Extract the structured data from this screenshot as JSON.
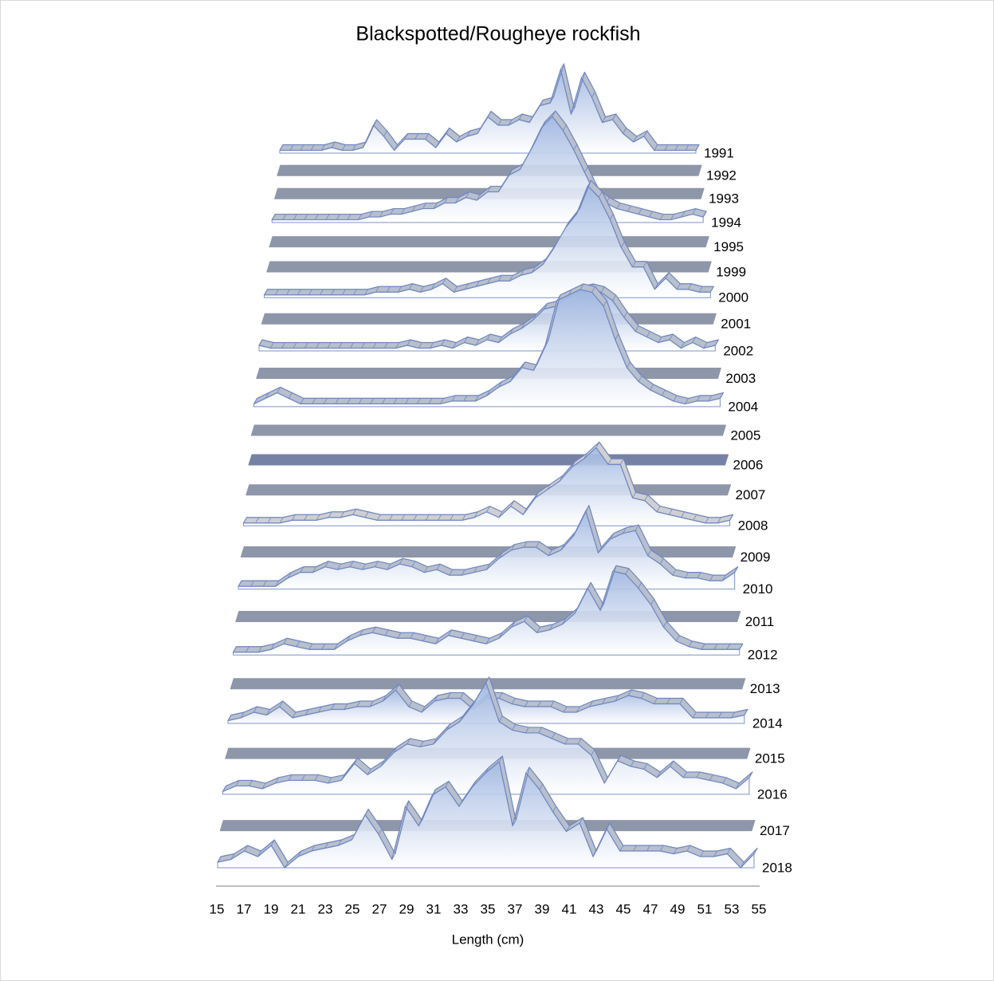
{
  "chart_data": {
    "type": "ridgeline",
    "title": "Blackspotted/Rougheye rockfish",
    "xlabel": "Length (cm)",
    "xlim": [
      15,
      55
    ],
    "xticks": [
      15,
      17,
      19,
      21,
      23,
      25,
      27,
      29,
      31,
      33,
      35,
      37,
      39,
      41,
      43,
      45,
      47,
      49,
      51,
      53,
      55
    ],
    "x": [
      15,
      16,
      17,
      18,
      19,
      20,
      21,
      22,
      23,
      24,
      25,
      26,
      27,
      28,
      29,
      30,
      31,
      32,
      33,
      34,
      35,
      36,
      37,
      38,
      39,
      40,
      41,
      42,
      43,
      44,
      45,
      46,
      47,
      48,
      49,
      50,
      51,
      52,
      53,
      54,
      55
    ],
    "series": [
      {
        "name": "1991",
        "color": "#b8bfcd",
        "values": [
          0.5,
          0.5,
          0.5,
          0.5,
          0.5,
          1,
          0.5,
          0.5,
          1,
          5,
          3,
          0.5,
          2.5,
          2.5,
          2.5,
          1,
          3.5,
          2,
          3,
          3.5,
          6.5,
          5,
          5,
          6,
          5.5,
          8.5,
          9,
          15,
          7,
          13.5,
          10,
          5.5,
          6,
          3.5,
          2,
          3,
          0.5,
          0.5,
          0.5,
          0.5,
          0.5
        ]
      },
      {
        "name": "1992",
        "color": "#8e96aa",
        "values": [
          0,
          0,
          0,
          0,
          0,
          0,
          0,
          0,
          0,
          0,
          0,
          0,
          0,
          0,
          0,
          0,
          0,
          0,
          0,
          0,
          0,
          0,
          0,
          0,
          0,
          0,
          0,
          0,
          0,
          0,
          0,
          0,
          0,
          0,
          0,
          0,
          0,
          0,
          0,
          0,
          0
        ]
      },
      {
        "name": "1993",
        "color": "#8e96aa",
        "values": [
          0,
          0,
          0,
          0,
          0,
          0,
          0,
          0,
          0,
          0,
          0,
          0,
          0,
          0,
          0,
          0,
          0,
          0,
          0,
          0,
          0,
          0,
          0,
          0,
          0,
          0,
          0,
          0,
          0,
          0,
          0,
          0,
          0,
          0,
          0,
          0,
          0,
          0,
          0,
          0,
          0
        ]
      },
      {
        "name": "1994",
        "color": "#b8bfcd",
        "values": [
          0.5,
          0.5,
          0.5,
          0.5,
          0.5,
          0.5,
          0.5,
          0.5,
          0.5,
          1,
          1,
          1.5,
          1.5,
          2,
          2.5,
          2.5,
          3.5,
          3.5,
          4.5,
          4,
          5.5,
          5.5,
          8.5,
          9.5,
          13,
          17,
          19,
          16.5,
          13,
          9,
          5,
          3.5,
          2.5,
          2,
          1.5,
          1,
          0.5,
          0.5,
          1,
          1.5,
          1
        ]
      },
      {
        "name": "1995",
        "color": "#8e96aa",
        "values": [
          0,
          0,
          0,
          0,
          0,
          0,
          0,
          0,
          0,
          0,
          0,
          0,
          0,
          0,
          0,
          0,
          0,
          0,
          0,
          0,
          0,
          0,
          0,
          0,
          0,
          0,
          0,
          0,
          0,
          0,
          0,
          0,
          0,
          0,
          0,
          0,
          0,
          0,
          0,
          0,
          0
        ]
      },
      {
        "name": "1999",
        "color": "#8e96aa",
        "values": [
          0,
          0,
          0,
          0,
          0,
          0,
          0,
          0,
          0,
          0,
          0,
          0,
          0,
          0,
          0,
          0,
          0,
          0,
          0,
          0,
          0,
          0,
          0,
          0,
          0,
          0,
          0,
          0,
          0,
          0,
          0,
          0,
          0,
          0,
          0,
          0,
          0,
          0,
          0,
          0,
          0
        ]
      },
      {
        "name": "2000",
        "color": "#b8bfcd",
        "values": [
          0.5,
          0.5,
          0.5,
          0.5,
          0.5,
          0.5,
          0.5,
          0.5,
          0.5,
          0.5,
          1,
          1,
          1,
          1.5,
          1,
          1.5,
          2.5,
          1,
          1.5,
          2,
          2.5,
          3,
          3,
          4,
          4.5,
          6,
          9,
          12.5,
          15,
          20,
          18,
          14,
          9,
          5.5,
          5.5,
          1.5,
          3.5,
          1.5,
          1.5,
          1,
          1
        ]
      },
      {
        "name": "2001",
        "color": "#8e96aa",
        "values": [
          0,
          0,
          0,
          0,
          0,
          0,
          0,
          0,
          0,
          0,
          0,
          0,
          0,
          0,
          0,
          0,
          0,
          0,
          0,
          0,
          0,
          0,
          0,
          0,
          0,
          0,
          0,
          0,
          0,
          0,
          0,
          0,
          0,
          0,
          0,
          0,
          0,
          0,
          0,
          0,
          0
        ]
      },
      {
        "name": "2002",
        "color": "#b8bfcd",
        "values": [
          1,
          0.5,
          0.5,
          0.5,
          0.5,
          0.5,
          0.5,
          0.5,
          0.5,
          0.5,
          0.5,
          0.5,
          0.5,
          1,
          0.5,
          0.5,
          1,
          0.5,
          1.5,
          1,
          2,
          1.5,
          3,
          4,
          5.5,
          7.5,
          8,
          9.5,
          10.5,
          11,
          10.5,
          9,
          6,
          3.5,
          2.5,
          1.5,
          2,
          0.5,
          1.5,
          0.5,
          1
        ]
      },
      {
        "name": "2003",
        "color": "#8e96aa",
        "values": [
          0,
          0,
          0,
          0,
          0,
          0,
          0,
          0,
          0,
          0,
          0,
          0,
          0,
          0,
          0,
          0,
          0,
          0,
          0,
          0,
          0,
          0,
          0,
          0,
          0,
          0,
          0,
          0,
          0,
          0,
          0,
          0,
          0,
          0,
          0,
          0,
          0,
          0,
          0,
          0,
          0
        ]
      },
      {
        "name": "2004",
        "color": "#b8bfcd",
        "values": [
          0.5,
          1.5,
          2.5,
          1.5,
          0.5,
          0.5,
          0.5,
          0.5,
          0.5,
          0.5,
          0.5,
          0.5,
          0.5,
          0.5,
          0.5,
          0.5,
          0.5,
          1,
          1,
          1,
          2,
          3.5,
          4.5,
          7,
          6.5,
          11,
          19,
          20,
          21,
          20.5,
          18,
          12,
          7,
          4.5,
          3,
          2,
          1,
          0.5,
          1,
          1,
          1.5
        ]
      },
      {
        "name": "2005",
        "color": "#8e96aa",
        "values": [
          0,
          0,
          0,
          0,
          0,
          0,
          0,
          0,
          0,
          0,
          0,
          0,
          0,
          0,
          0,
          0,
          0,
          0,
          0,
          0,
          0,
          0,
          0,
          0,
          0,
          0,
          0,
          0,
          0,
          0,
          0,
          0,
          0,
          0,
          0,
          0,
          0,
          0,
          0,
          0,
          0
        ]
      },
      {
        "name": "2006",
        "color": "#7582a6",
        "values": [
          0,
          0,
          0,
          0,
          0,
          0,
          0,
          0,
          0,
          0,
          0,
          0,
          0,
          0,
          0,
          0,
          0,
          0,
          0,
          0,
          0,
          0,
          0,
          0,
          0,
          0,
          0,
          0,
          0,
          0,
          0,
          0,
          0,
          0,
          0,
          0,
          0,
          0,
          0,
          0,
          0
        ]
      },
      {
        "name": "2007",
        "color": "#8e96aa",
        "values": [
          0,
          0,
          0,
          0,
          0,
          0,
          0,
          0,
          0,
          0,
          0,
          0,
          0,
          0,
          0,
          0,
          0,
          0,
          0,
          0,
          0,
          0,
          0,
          0,
          0,
          0,
          0,
          0,
          0,
          0,
          0,
          0,
          0,
          0,
          0,
          0,
          0,
          0,
          0,
          0,
          0
        ]
      },
      {
        "name": "2008",
        "color": "#cfcfd2",
        "values": [
          0.5,
          0.5,
          0.5,
          0.5,
          1,
          1,
          1,
          1.5,
          1.5,
          2,
          1.5,
          1,
          1,
          1,
          1,
          1,
          1,
          1,
          1,
          1.5,
          2.5,
          1.5,
          3.5,
          2,
          5,
          6.5,
          8,
          10.5,
          12,
          14,
          11,
          11,
          5,
          4.5,
          2.5,
          2,
          1.5,
          1,
          0.5,
          0.5,
          1
        ]
      },
      {
        "name": "2009",
        "color": "#8e96aa",
        "values": [
          0,
          0,
          0,
          0,
          0,
          0,
          0,
          0,
          0,
          0,
          0,
          0,
          0,
          0,
          0,
          0,
          0,
          0,
          0,
          0,
          0,
          0,
          0,
          0,
          0,
          0,
          0,
          0,
          0,
          0,
          0,
          0,
          0,
          0,
          0,
          0,
          0,
          0,
          0,
          0,
          0
        ]
      },
      {
        "name": "2010",
        "color": "#b8bfcd",
        "values": [
          0.5,
          0.5,
          0.5,
          0.5,
          2,
          3,
          3,
          4,
          3.5,
          4,
          3.5,
          4,
          3.5,
          4.5,
          4,
          3,
          3.5,
          2.5,
          2.5,
          3,
          3.5,
          5.5,
          7,
          7.5,
          7.5,
          6,
          7,
          9.5,
          14,
          6.5,
          9,
          10,
          10.5,
          6,
          4.5,
          2.5,
          2,
          2,
          1.5,
          1.5,
          3
        ]
      },
      {
        "name": "2011",
        "color": "#8e96aa",
        "values": [
          0,
          0,
          0,
          0,
          0,
          0,
          0,
          0,
          0,
          0,
          0,
          0,
          0,
          0,
          0,
          0,
          0,
          0,
          0,
          0,
          0,
          0,
          0,
          0,
          0,
          0,
          0,
          0,
          0,
          0,
          0,
          0,
          0,
          0,
          0,
          0,
          0,
          0,
          0,
          0,
          0
        ]
      },
      {
        "name": "2012",
        "color": "#b8bfcd",
        "values": [
          0.5,
          0.5,
          0.5,
          1,
          2,
          1.5,
          1,
          1,
          1,
          2.5,
          3.5,
          4,
          3.5,
          3,
          3,
          2.5,
          2,
          3.5,
          3,
          2.5,
          2,
          3,
          5,
          6,
          4,
          4.5,
          5.5,
          7.5,
          12,
          8,
          15,
          14.5,
          12,
          9,
          5,
          2.5,
          1.5,
          1,
          1,
          1,
          1
        ]
      },
      {
        "name": "2013",
        "color": "#8e96aa",
        "values": [
          0,
          0,
          0,
          0,
          0,
          0,
          0,
          0,
          0,
          0,
          0,
          0,
          0,
          0,
          0,
          0,
          0,
          0,
          0,
          0,
          0,
          0,
          0,
          0,
          0,
          0,
          0,
          0,
          0,
          0,
          0,
          0,
          0,
          0,
          0,
          0,
          0,
          0,
          0,
          0,
          0
        ]
      },
      {
        "name": "2014",
        "color": "#b8bfcd",
        "values": [
          0.5,
          1,
          2,
          1.5,
          3,
          1,
          1.5,
          2,
          2.5,
          2.5,
          3,
          3,
          4,
          6,
          3,
          2,
          4,
          4.5,
          4.5,
          2.5,
          4.5,
          4.5,
          3.5,
          3,
          3,
          3,
          2,
          2,
          3,
          3.5,
          4,
          5,
          4.5,
          3.5,
          3.5,
          3.5,
          1,
          1,
          1,
          1,
          1.5
        ]
      },
      {
        "name": "2015",
        "color": "#8e96aa",
        "values": [
          0,
          0,
          0,
          0,
          0,
          0,
          0,
          0,
          0,
          0,
          0,
          0,
          0,
          0,
          0,
          0,
          0,
          0,
          0,
          0,
          0,
          0,
          0,
          0,
          0,
          0,
          0,
          0,
          0,
          0,
          0,
          0,
          0,
          0,
          0,
          0,
          0,
          0,
          0,
          0,
          0
        ]
      },
      {
        "name": "2016",
        "color": "#b8bfcd",
        "values": [
          0.5,
          1.5,
          1.5,
          1,
          2,
          2.5,
          2.5,
          2.5,
          2,
          2.5,
          5.5,
          3.5,
          5,
          7.5,
          9,
          8.5,
          9,
          11.5,
          13,
          16,
          20,
          13,
          11.5,
          11,
          11,
          10,
          9,
          9,
          7,
          2,
          6,
          5,
          4.5,
          3,
          5,
          3,
          3,
          2.5,
          2,
          1,
          3
        ]
      },
      {
        "name": "2017",
        "color": "#8e96aa",
        "values": [
          0,
          0,
          0,
          0,
          0,
          0,
          0,
          0,
          0,
          0,
          0,
          0,
          0,
          0,
          0,
          0,
          0,
          0,
          0,
          0,
          0,
          0,
          0,
          0,
          0,
          0,
          0,
          0,
          0,
          0,
          0,
          0,
          0,
          0,
          0,
          0,
          0,
          0,
          0,
          0,
          0
        ]
      },
      {
        "name": "2018",
        "color": "#b8bfcd",
        "values": [
          1,
          1.5,
          3,
          2,
          4,
          0,
          2,
          3,
          3.5,
          4,
          5,
          9.5,
          6,
          1.5,
          11,
          7.5,
          13,
          14.5,
          11,
          14.5,
          17,
          19,
          7.5,
          17,
          14,
          10,
          6.5,
          8,
          2,
          7,
          3,
          3,
          3,
          3,
          2.5,
          3,
          2,
          2,
          2.5,
          0,
          2.5
        ]
      }
    ]
  }
}
